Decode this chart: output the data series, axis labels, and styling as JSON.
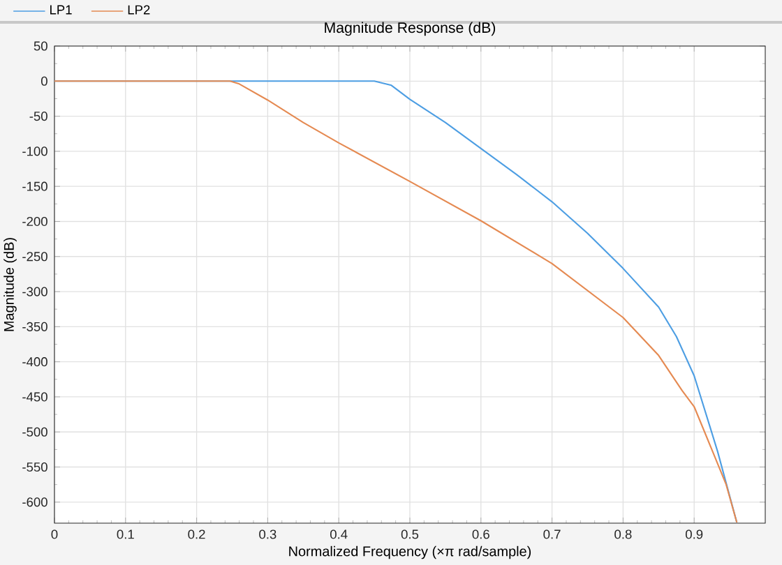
{
  "chart_data": {
    "type": "line",
    "title": "Magnitude Response (dB)",
    "xlabel": "Normalized Frequency (×π rad/sample)",
    "ylabel": "Magnitude (dB)",
    "xlim": [
      0,
      1
    ],
    "xticks": [
      0,
      0.1,
      0.2,
      0.3,
      0.4,
      0.5,
      0.6,
      0.7,
      0.8,
      0.9
    ],
    "ylim": [
      -630,
      50
    ],
    "yticks": [
      -600,
      -550,
      -500,
      -450,
      -400,
      -350,
      -300,
      -250,
      -200,
      -150,
      -100,
      -50,
      0,
      50
    ],
    "grid": true,
    "legend": "top left",
    "marker": "none",
    "line_style": "solid",
    "series": [
      {
        "name": "LP1",
        "color": "#4d9ee3",
        "x": [
          0,
          0.1,
          0.2,
          0.3,
          0.4,
          0.45,
          0.474,
          0.5,
          0.55,
          0.6,
          0.65,
          0.7,
          0.75,
          0.8,
          0.85,
          0.875,
          0.9,
          0.933,
          0.96
        ],
        "values": [
          0,
          0,
          0,
          0,
          0,
          0,
          -6,
          -26,
          -59,
          -96,
          -133,
          -172,
          -217,
          -267,
          -322,
          -364,
          -420,
          -528,
          -629
        ]
      },
      {
        "name": "LP2",
        "color": "#e58a52",
        "x": [
          0,
          0.1,
          0.2,
          0.247,
          0.26,
          0.3,
          0.35,
          0.4,
          0.5,
          0.6,
          0.7,
          0.8,
          0.85,
          0.883,
          0.9,
          0.926,
          0.945,
          0.96
        ],
        "values": [
          0,
          0,
          0,
          0,
          -4,
          -27,
          -59,
          -88,
          -143,
          -199,
          -260,
          -337,
          -391,
          -441,
          -464,
          -528,
          -575,
          -629
        ]
      }
    ]
  }
}
